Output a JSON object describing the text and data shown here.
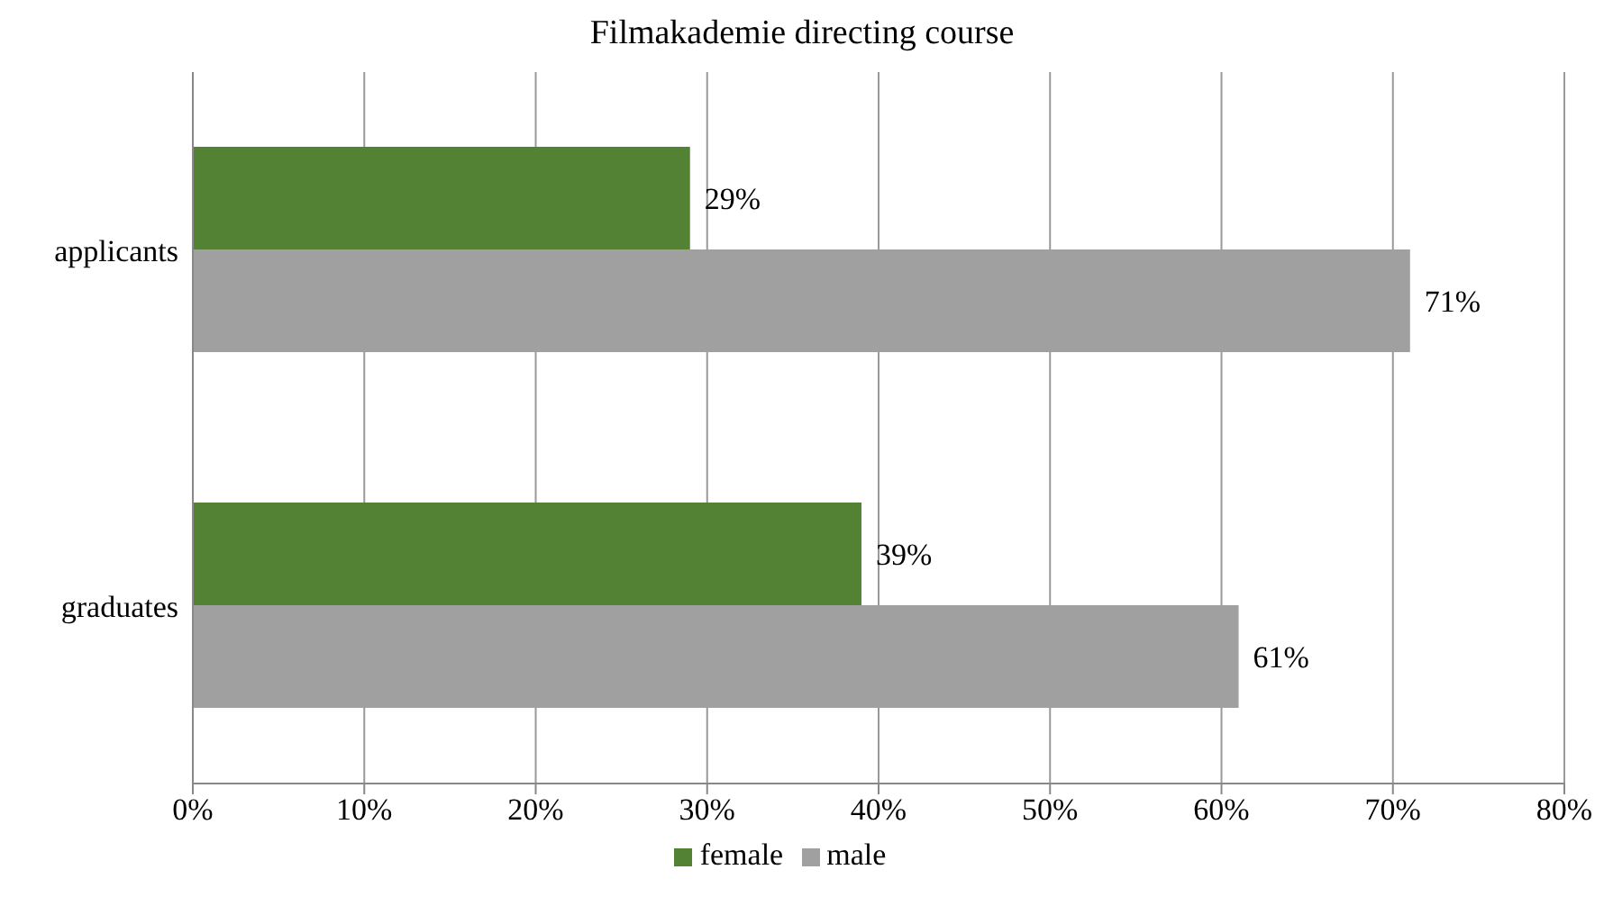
{
  "chart_data": {
    "type": "bar",
    "orientation": "horizontal",
    "title": "Filmakademie directing course",
    "categories": [
      "applicants",
      "graduates"
    ],
    "series": [
      {
        "name": "female",
        "color": "#548235",
        "values": [
          29,
          39
        ],
        "value_labels": [
          "29%",
          "39%"
        ]
      },
      {
        "name": "male",
        "color": "#a0a0a0",
        "values": [
          71,
          61
        ],
        "value_labels": [
          "71%",
          "61%"
        ]
      }
    ],
    "xlim": [
      0,
      80
    ],
    "xticks": [
      {
        "value": 0,
        "label": "0%"
      },
      {
        "value": 10,
        "label": "10%"
      },
      {
        "value": 20,
        "label": "20%"
      },
      {
        "value": 30,
        "label": "30%"
      },
      {
        "value": 40,
        "label": "40%"
      },
      {
        "value": 50,
        "label": "50%"
      },
      {
        "value": 60,
        "label": "60%"
      },
      {
        "value": 70,
        "label": "70%"
      },
      {
        "value": 80,
        "label": "80%"
      }
    ],
    "grid": "x",
    "legend": "bottom"
  }
}
